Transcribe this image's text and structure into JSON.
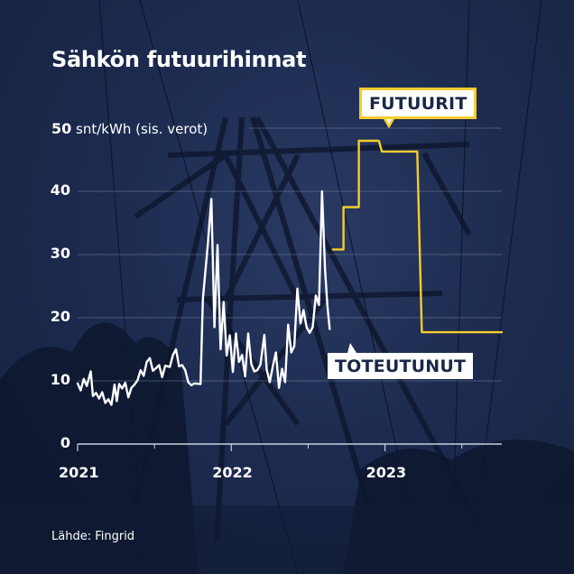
{
  "title": "Sähkön futuurihinnat",
  "unit_value": "50",
  "unit_text": "snt/kWh (sis. verot)",
  "source": "Lähde: Fingrid",
  "colors": {
    "actual": "#ffffff",
    "futures": "#f5cd2e",
    "grid": "#8d98b4",
    "background": "#1d2b50"
  },
  "labels": {
    "futures": "FUTUURIT",
    "actual": "TOTEUTUNUT"
  },
  "chart_data": {
    "type": "line",
    "title": "Sähkön futuurihinnat",
    "ylabel": "snt/kWh (sis. verot)",
    "ylim": [
      0,
      50
    ],
    "yticks": [
      "0",
      "10",
      "20",
      "30",
      "40"
    ],
    "xlim": [
      2021.0,
      2023.76
    ],
    "xticks": [
      {
        "value": 2021.0,
        "label": "2021"
      },
      {
        "value": 2022.0,
        "label": "2022"
      },
      {
        "value": 2023.0,
        "label": "2023"
      }
    ],
    "grid": true,
    "series": [
      {
        "name": "TOTEUTUNUT",
        "color": "#ffffff",
        "points": [
          [
            2021.0,
            9.6
          ],
          [
            2021.02,
            8.5
          ],
          [
            2021.04,
            10.3
          ],
          [
            2021.06,
            9.2
          ],
          [
            2021.085,
            11.5
          ],
          [
            2021.1,
            7.6
          ],
          [
            2021.12,
            8.1
          ],
          [
            2021.14,
            7.2
          ],
          [
            2021.16,
            8.2
          ],
          [
            2021.18,
            6.5
          ],
          [
            2021.2,
            7.1
          ],
          [
            2021.22,
            6.2
          ],
          [
            2021.24,
            9.4
          ],
          [
            2021.255,
            6.8
          ],
          [
            2021.27,
            9.5
          ],
          [
            2021.29,
            8.8
          ],
          [
            2021.31,
            9.7
          ],
          [
            2021.33,
            7.4
          ],
          [
            2021.35,
            8.9
          ],
          [
            2021.37,
            9.4
          ],
          [
            2021.39,
            10.1
          ],
          [
            2021.41,
            11.7
          ],
          [
            2021.43,
            10.8
          ],
          [
            2021.45,
            13.0
          ],
          [
            2021.47,
            13.6
          ],
          [
            2021.49,
            11.6
          ],
          [
            2021.51,
            12.0
          ],
          [
            2021.53,
            12.5
          ],
          [
            2021.55,
            10.6
          ],
          [
            2021.57,
            12.4
          ],
          [
            2021.6,
            12.2
          ],
          [
            2021.62,
            14.1
          ],
          [
            2021.64,
            15.0
          ],
          [
            2021.66,
            12.3
          ],
          [
            2021.68,
            12.5
          ],
          [
            2021.7,
            11.7
          ],
          [
            2021.72,
            9.8
          ],
          [
            2021.74,
            9.3
          ],
          [
            2021.76,
            9.6
          ],
          [
            2021.8,
            9.5
          ],
          [
            2021.815,
            23.0
          ],
          [
            2021.845,
            31.0
          ],
          [
            2021.87,
            38.8
          ],
          [
            2021.89,
            18.5
          ],
          [
            2021.91,
            31.5
          ],
          [
            2021.93,
            15.0
          ],
          [
            2021.95,
            22.5
          ],
          [
            2021.97,
            14.0
          ],
          [
            2021.99,
            17.2
          ],
          [
            2022.01,
            11.4
          ],
          [
            2022.03,
            17.5
          ],
          [
            2022.05,
            13.0
          ],
          [
            2022.07,
            14.1
          ],
          [
            2022.09,
            10.7
          ],
          [
            2022.11,
            17.5
          ],
          [
            2022.13,
            12.7
          ],
          [
            2022.15,
            11.5
          ],
          [
            2022.17,
            11.7
          ],
          [
            2022.19,
            12.6
          ],
          [
            2022.215,
            17.3
          ],
          [
            2022.23,
            11.8
          ],
          [
            2022.25,
            9.8
          ],
          [
            2022.27,
            12.3
          ],
          [
            2022.29,
            14.5
          ],
          [
            2022.31,
            8.9
          ],
          [
            2022.33,
            11.9
          ],
          [
            2022.35,
            9.8
          ],
          [
            2022.37,
            18.9
          ],
          [
            2022.39,
            14.5
          ],
          [
            2022.41,
            15.5
          ],
          [
            2022.43,
            24.6
          ],
          [
            2022.45,
            19.1
          ],
          [
            2022.47,
            21.2
          ],
          [
            2022.49,
            18.5
          ],
          [
            2022.51,
            17.6
          ],
          [
            2022.53,
            18.5
          ],
          [
            2022.55,
            23.5
          ],
          [
            2022.57,
            22.0
          ],
          [
            2022.59,
            40.0
          ],
          [
            2022.61,
            27.5
          ],
          [
            2022.625,
            22.0
          ],
          [
            2022.64,
            18.2
          ]
        ]
      },
      {
        "name": "FUTUURIT",
        "color": "#f5cd2e",
        "points": [
          [
            2022.66,
            30.8
          ],
          [
            2022.73,
            30.8
          ],
          [
            2022.73,
            37.5
          ],
          [
            2022.83,
            37.5
          ],
          [
            2022.83,
            48.0
          ],
          [
            2022.96,
            48.0
          ],
          [
            2022.98,
            46.3
          ],
          [
            2023.21,
            46.3
          ],
          [
            2023.24,
            17.7
          ],
          [
            2023.76,
            17.7
          ]
        ]
      }
    ]
  }
}
